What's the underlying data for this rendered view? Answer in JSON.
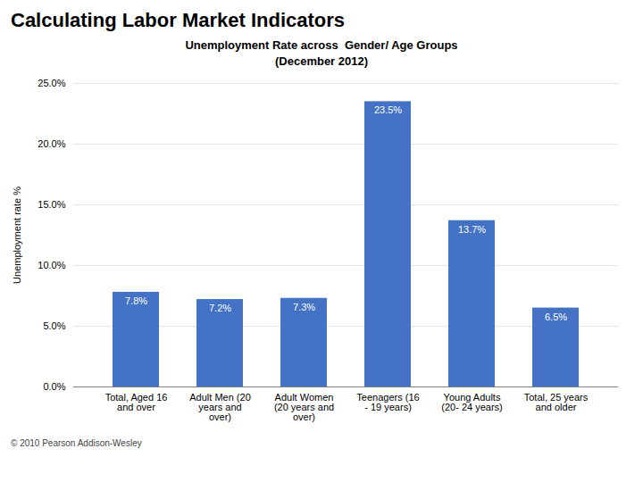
{
  "chart_data": {
    "type": "bar",
    "title": "Calculating Labor Market Indicators",
    "subtitle": "Unemployment Rate across  Gender/ Age Groups\n(December 2012)",
    "categories": [
      "Total, Aged 16\nand over",
      "Adult Men (20\nyears and\nover)",
      "Adult Women\n(20 years and\nover)",
      "Teenagers (16\n- 19 years)",
      "Young Adults\n(20- 24 years)",
      "Total, 25 years\nand older"
    ],
    "values": [
      7.8,
      7.2,
      7.3,
      23.5,
      13.7,
      6.5
    ],
    "value_labels": [
      "7.8%",
      "7.2%",
      "7.3%",
      "23.5%",
      "13.7%",
      "6.5%"
    ],
    "data_labels": true,
    "color": "#4472C4",
    "ylabel": "Unemployment rate %",
    "ylim": [
      0,
      25.0
    ],
    "yticks": [
      {
        "value": 0.0,
        "label": "0.0%"
      },
      {
        "value": 5.0,
        "label": "5.0%"
      },
      {
        "value": 10.0,
        "label": "10.0%"
      },
      {
        "value": 15.0,
        "label": "15.0%"
      },
      {
        "value": 20.0,
        "label": "20.0%"
      },
      {
        "value": 25.0,
        "label": "25.0%"
      }
    ],
    "grid": true,
    "annotations": [
      "© 2010 Pearson Addison-Wesley"
    ]
  }
}
